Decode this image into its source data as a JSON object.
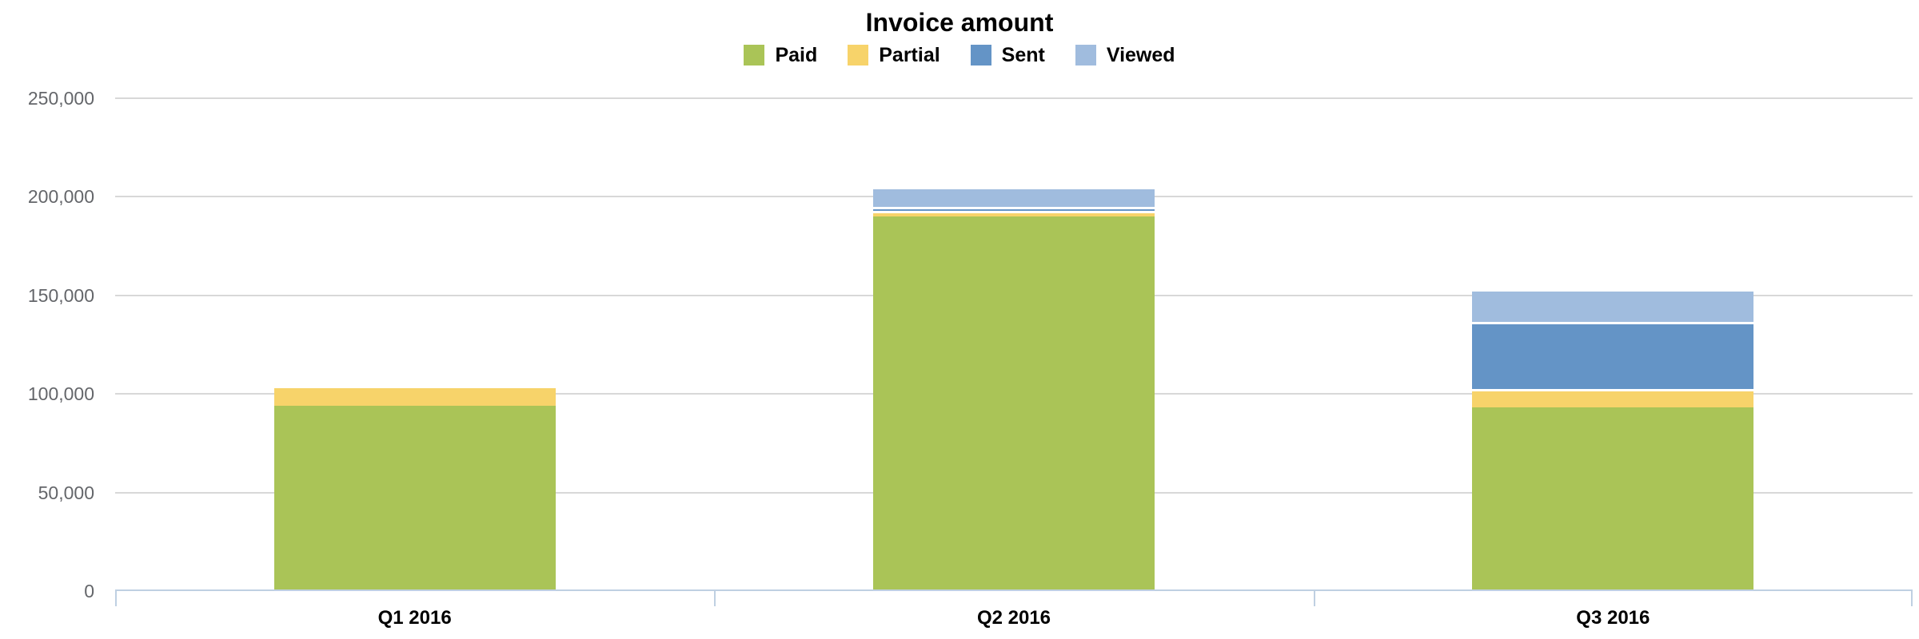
{
  "chart_data": {
    "type": "bar",
    "stacked": true,
    "title": "Invoice amount",
    "categories": [
      "Q1 2016",
      "Q2 2016",
      "Q3 2016"
    ],
    "series": [
      {
        "name": "Paid",
        "color": "#aac457",
        "values": [
          94000,
          190000,
          93000
        ]
      },
      {
        "name": "Partial",
        "color": "#f7d36a",
        "values": [
          10000,
          3000,
          9500
        ]
      },
      {
        "name": "Sent",
        "color": "#6494c6",
        "values": [
          0,
          2000,
          34000
        ]
      },
      {
        "name": "Viewed",
        "color": "#a0bcde",
        "values": [
          0,
          10000,
          16500
        ]
      }
    ],
    "ylim": [
      0,
      250000
    ],
    "y_ticks": [
      {
        "value": 0,
        "label": "0"
      },
      {
        "value": 50000,
        "label": "50,000"
      },
      {
        "value": 100000,
        "label": "100,000"
      },
      {
        "value": 150000,
        "label": "150,000"
      },
      {
        "value": 200000,
        "label": "200,000"
      },
      {
        "value": 250000,
        "label": "250,000"
      }
    ],
    "grid": true,
    "legend_position": "top-center",
    "colors": {
      "gridline": "#d8d8d8",
      "axis_line": "#bfd0e2",
      "y_label_text": "#64666a",
      "x_label_text": "#000000",
      "title_text": "#000000",
      "background": "#ffffff"
    }
  }
}
